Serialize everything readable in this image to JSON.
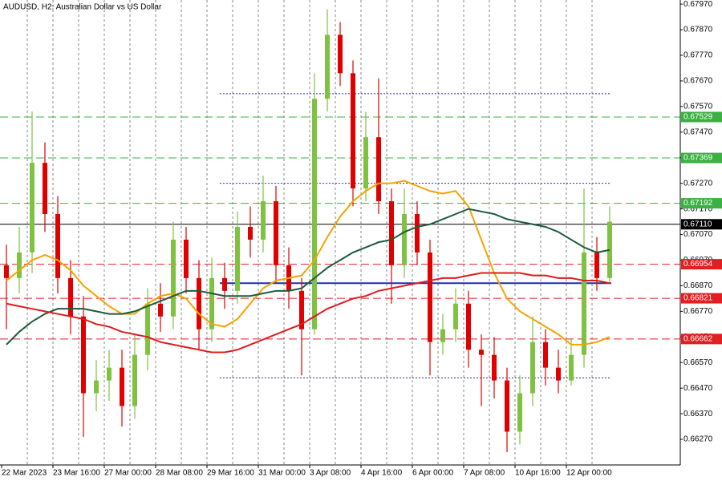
{
  "chart_data": {
    "type": "candlestick",
    "title": "AUDUSD, H2:  Australian Dollar vs US Dollar",
    "categories": [
      "22 Mar 2023",
      null,
      null,
      null,
      "23 Mar 16:00",
      null,
      null,
      null,
      "27 Mar 00:00",
      null,
      null,
      null,
      "28 Mar 08:00",
      null,
      null,
      null,
      "29 Mar 16:00",
      null,
      null,
      null,
      "31 Mar 00:00",
      null,
      null,
      null,
      "3 Apr 08:00",
      null,
      null,
      null,
      "4 Apr 16:00",
      null,
      null,
      null,
      "6 Apr 00:00",
      null,
      null,
      null,
      "7 Apr 08:00",
      null,
      null,
      null,
      "10 Apr 16:00",
      null,
      null,
      null,
      "12 Apr 00:00",
      null,
      null,
      null
    ],
    "open": [
      0.6695,
      0.669,
      0.67,
      0.6735,
      0.6715,
      0.669,
      0.6675,
      0.6645,
      0.665,
      0.6655,
      0.664,
      0.666,
      0.668,
      0.6675,
      0.6705,
      0.669,
      0.667,
      0.669,
      0.6685,
      0.671,
      0.6705,
      0.672,
      0.6695,
      0.6685,
      0.667,
      0.676,
      0.6785,
      0.677,
      0.6725,
      0.6745,
      0.672,
      0.6695,
      0.6715,
      0.67,
      0.6665,
      0.667,
      0.668,
      0.6662,
      0.666,
      0.665,
      0.663,
      0.6645,
      0.6665,
      0.6655,
      0.665,
      0.666,
      0.67,
      0.669
    ],
    "high": [
      0.6703,
      0.671,
      0.6755,
      0.6743,
      0.6722,
      0.6697,
      0.6683,
      0.6658,
      0.6662,
      0.6662,
      0.6668,
      0.6686,
      0.6688,
      0.6712,
      0.671,
      0.6697,
      0.6698,
      0.6696,
      0.6716,
      0.6718,
      0.673,
      0.6726,
      0.6702,
      0.669,
      0.677,
      0.6795,
      0.679,
      0.6775,
      0.6755,
      0.6768,
      0.6725,
      0.6725,
      0.672,
      0.6705,
      0.6676,
      0.6686,
      0.6685,
      0.6668,
      0.6667,
      0.6655,
      0.6652,
      0.6675,
      0.667,
      0.6662,
      0.6666,
      0.6725,
      0.6706,
      0.6718
    ],
    "low": [
      0.667,
      0.6684,
      0.6692,
      0.6708,
      0.6684,
      0.6668,
      0.6628,
      0.6638,
      0.6642,
      0.6632,
      0.6635,
      0.6654,
      0.6669,
      0.667,
      0.6684,
      0.6662,
      0.6665,
      0.6678,
      0.668,
      0.6698,
      0.67,
      0.6688,
      0.6678,
      0.6652,
      0.6668,
      0.6755,
      0.6765,
      0.6718,
      0.672,
      0.6715,
      0.668,
      0.669,
      0.6695,
      0.6652,
      0.666,
      0.6665,
      0.6655,
      0.664,
      0.6643,
      0.6622,
      0.6625,
      0.664,
      0.6648,
      0.6645,
      0.6648,
      0.6655,
      0.6685,
      0.6688
    ],
    "close": [
      0.669,
      0.67,
      0.6735,
      0.6715,
      0.669,
      0.6675,
      0.6645,
      0.665,
      0.6655,
      0.664,
      0.666,
      0.668,
      0.6675,
      0.6705,
      0.669,
      0.667,
      0.669,
      0.6685,
      0.671,
      0.6705,
      0.672,
      0.6695,
      0.6685,
      0.667,
      0.676,
      0.6785,
      0.677,
      0.6725,
      0.6745,
      0.672,
      0.6695,
      0.6715,
      0.67,
      0.6665,
      0.667,
      0.668,
      0.6662,
      0.666,
      0.665,
      0.663,
      0.6645,
      0.6665,
      0.6655,
      0.665,
      0.666,
      0.67,
      0.669,
      0.6712
    ],
    "up_color": "#7fc241",
    "down_color": "#e00000",
    "lines": [
      {
        "color": "#f5a300",
        "values": [
          0.6689,
          0.6693,
          0.6697,
          0.6699,
          0.6697,
          0.6693,
          0.6687,
          0.6683,
          0.6679,
          0.6676,
          0.6676,
          0.668,
          0.6683,
          0.6684,
          0.6682,
          0.6676,
          0.6672,
          0.6671,
          0.6674,
          0.668,
          0.6686,
          0.6689,
          0.669,
          0.6691,
          0.6697,
          0.6706,
          0.6714,
          0.672,
          0.6724,
          0.6727,
          0.6727,
          0.6728,
          0.6726,
          0.6724,
          0.6723,
          0.6724,
          0.6718,
          0.6705,
          0.6692,
          0.6682,
          0.6677,
          0.6674,
          0.6671,
          0.6668,
          0.6664,
          0.6664,
          0.6665,
          0.6667
        ]
      },
      {
        "color": "#1e5a3c",
        "values": [
          0.6664,
          0.6669,
          0.6673,
          0.6676,
          0.6678,
          0.6678,
          0.6678,
          0.6677,
          0.6676,
          0.6676,
          0.6677,
          0.6679,
          0.6681,
          0.6683,
          0.6685,
          0.6685,
          0.6684,
          0.6683,
          0.6683,
          0.6683,
          0.6684,
          0.6685,
          0.6685,
          0.6686,
          0.669,
          0.6694,
          0.6697,
          0.67,
          0.6702,
          0.6704,
          0.6705,
          0.6708,
          0.671,
          0.6711,
          0.6713,
          0.6715,
          0.6717,
          0.6716,
          0.6715,
          0.6713,
          0.6712,
          0.6711,
          0.671,
          0.6708,
          0.6705,
          0.6702,
          0.67,
          0.6701
        ]
      },
      {
        "color": "#dd1c1c",
        "values": [
          0.668,
          0.6679,
          0.6678,
          0.6677,
          0.6676,
          0.6675,
          0.6674,
          0.6672,
          0.6671,
          0.6669,
          0.6668,
          0.6667,
          0.6665,
          0.6664,
          0.6663,
          0.6662,
          0.6661,
          0.6661,
          0.6662,
          0.6664,
          0.6666,
          0.6668,
          0.667,
          0.6672,
          0.6675,
          0.6678,
          0.668,
          0.6682,
          0.6683,
          0.6685,
          0.6686,
          0.6687,
          0.6688,
          0.6689,
          0.669,
          0.669,
          0.6691,
          0.6692,
          0.6692,
          0.6692,
          0.6692,
          0.6691,
          0.6691,
          0.669,
          0.669,
          0.6689,
          0.6689,
          0.6688
        ]
      }
    ],
    "levels": [
      {
        "price": 0.67529,
        "color": "#3cb043",
        "dashed": true
      },
      {
        "price": 0.67369,
        "color": "#3cb043",
        "dashed": true
      },
      {
        "price": 0.67192,
        "color": "#3cb043",
        "dashed": true
      },
      {
        "price": {
          "value": 0.6711,
          "label": "0.67110"
        },
        "color": "#000000",
        "dashed": false
      },
      {
        "price": 0.66954,
        "color": "#e02020",
        "dashed": true
      },
      {
        "price": 0.66821,
        "color": "#e02020",
        "dashed": true
      },
      {
        "price": 0.66662,
        "color": "#e02020",
        "dashed": true
      }
    ],
    "zones": [
      {
        "price": 0.6762,
        "color": "#1f2fa8",
        "dotted": true
      },
      {
        "price": 0.6727,
        "color": "#1f2fa8",
        "dotted": true
      },
      {
        "price": 0.6688,
        "color": "#1f2fa8",
        "dotted": false
      },
      {
        "price": 0.6651,
        "color": "#1f2fa8",
        "dotted": true
      }
    ],
    "ylim": [
      0.6617,
      0.67986
    ],
    "yticks": [
      {
        "value": 0.6797,
        "label": "0.67970"
      },
      {
        "value": 0.6787,
        "label": "0.67870"
      },
      {
        "value": 0.6777,
        "label": "0.67770"
      },
      {
        "value": 0.6767,
        "label": "0.67670"
      },
      {
        "value": 0.6757,
        "label": "0.67570"
      },
      {
        "value": 0.6747,
        "label": "0.67470"
      },
      {
        "value": 0.6737,
        "label": "0.67370"
      },
      {
        "value": 0.6727,
        "label": "0.67270"
      },
      {
        "value": 0.6717,
        "label": "0.67170"
      },
      {
        "value": 0.6707,
        "label": "0.67070"
      },
      {
        "value": 0.6697,
        "label": "0.66970"
      },
      {
        "value": 0.6687,
        "label": "0.66870"
      },
      {
        "value": 0.6677,
        "label": "0.66770"
      },
      {
        "value": 0.6667,
        "label": "0.66670"
      },
      {
        "value": 0.6657,
        "label": "0.66570"
      },
      {
        "value": 0.6647,
        "label": "0.66470"
      },
      {
        "value": 0.6637,
        "label": "0.66370"
      },
      {
        "value": 0.6627,
        "label": "0.66270"
      }
    ],
    "grid": true
  }
}
